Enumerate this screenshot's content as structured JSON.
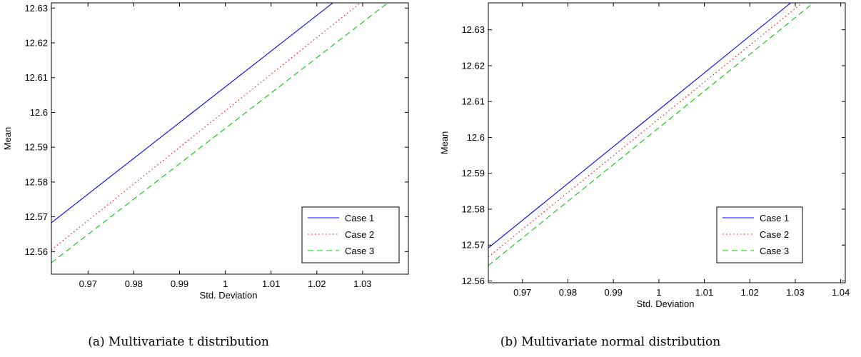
{
  "chart_data": [
    {
      "type": "line",
      "caption": "(a) Multivariate t distribution",
      "xlabel": "Std. Deviation",
      "ylabel": "Mean",
      "xlim": [
        0.962,
        1.04
      ],
      "ylim": [
        12.5535,
        12.6315
      ],
      "xticks": [
        0.97,
        0.98,
        0.99,
        1,
        1.01,
        1.02,
        1.03
      ],
      "xtick_labels": [
        "0.97",
        "0.98",
        "0.99",
        "1",
        "1.01",
        "1.02",
        "1.03"
      ],
      "yticks": [
        12.56,
        12.57,
        12.58,
        12.59,
        12.6,
        12.61,
        12.62,
        12.63
      ],
      "ytick_labels": [
        "12.56",
        "12.57",
        "12.58",
        "12.59",
        "12.6",
        "12.61",
        "12.62",
        "12.63"
      ],
      "grid": false,
      "legend_position": "lower-right",
      "series": [
        {
          "name": "Case 1",
          "style": "solid",
          "color": "#0000ff",
          "x": [
            0.962,
            1.0235
          ],
          "y": [
            12.5683,
            12.6315
          ]
        },
        {
          "name": "Case 2",
          "style": "dotted",
          "color": "#ff0000",
          "x": [
            0.962,
            1.0295
          ],
          "y": [
            12.5605,
            12.6315
          ]
        },
        {
          "name": "Case 3",
          "style": "dashed",
          "color": "#00cc00",
          "x": [
            0.962,
            1.0355
          ],
          "y": [
            12.5568,
            12.6315
          ]
        }
      ]
    },
    {
      "type": "line",
      "caption": "(b) Multivariate normal distribution",
      "xlabel": "Std. Deviation",
      "ylabel": "Mean",
      "xlim": [
        0.9625,
        1.041
      ],
      "ylim": [
        12.5595,
        12.6375
      ],
      "xticks": [
        0.97,
        0.98,
        0.99,
        1,
        1.01,
        1.02,
        1.03,
        1.04
      ],
      "xtick_labels": [
        "0.97",
        "0.98",
        "0.99",
        "1",
        "1.01",
        "1.02",
        "1.03",
        "1.04"
      ],
      "yticks": [
        12.56,
        12.57,
        12.58,
        12.59,
        12.6,
        12.61,
        12.62,
        12.63
      ],
      "ytick_labels": [
        "12.56",
        "12.57",
        "12.58",
        "12.59",
        "12.6",
        "12.61",
        "12.62",
        "12.63"
      ],
      "grid": false,
      "legend_position": "lower-right",
      "series": [
        {
          "name": "Case 1",
          "style": "solid",
          "color": "#0000ff",
          "x": [
            0.9625,
            1.029
          ],
          "y": [
            12.5692,
            12.6375
          ]
        },
        {
          "name": "Case 2",
          "style": "dotted",
          "color": "#ff0000",
          "x": [
            0.9625,
            1.0315
          ],
          "y": [
            12.5667,
            12.6375
          ]
        },
        {
          "name": "Case 3",
          "style": "dashed",
          "color": "#00cc00",
          "x": [
            0.9625,
            1.034
          ],
          "y": [
            12.5643,
            12.6375
          ]
        }
      ]
    }
  ]
}
